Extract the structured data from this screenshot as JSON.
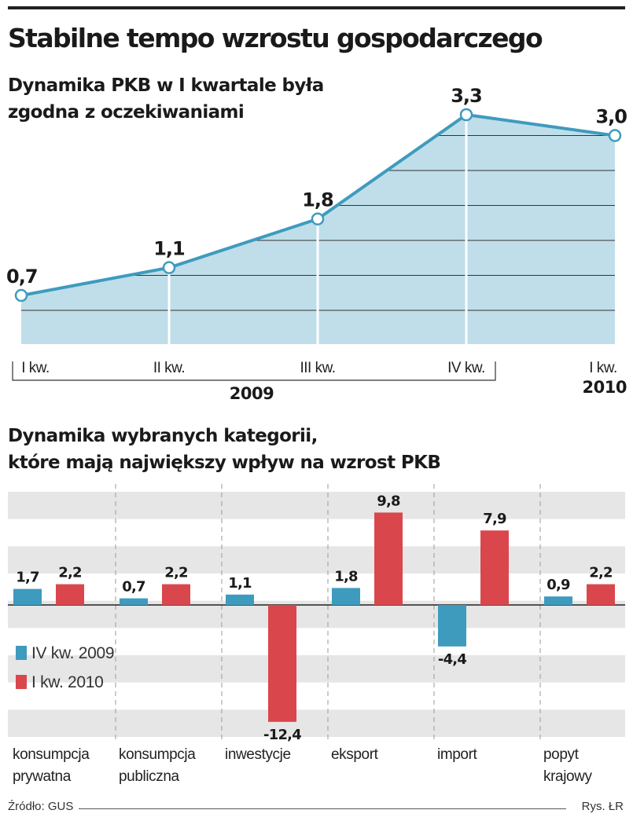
{
  "title": "Stabilne tempo wzrostu gospodarczego",
  "source": "Źródło: GUS",
  "credit": "Rys. ŁR",
  "chart_data": [
    {
      "type": "area",
      "title_lines": [
        "Dynamika PKB w I kwartale była",
        "zgodna z oczekiwaniami"
      ],
      "categories": [
        "I kw.",
        "II kw.",
        "III kw.",
        "IV kw.",
        "I kw."
      ],
      "values": [
        0.7,
        1.1,
        1.8,
        3.3,
        3.0
      ],
      "value_labels": [
        "0,7",
        "1,1",
        "1,8",
        "3,3",
        "3,0"
      ],
      "year_labels": [
        {
          "text": "2009",
          "span": [
            0,
            3
          ]
        },
        {
          "text": "2010",
          "span": [
            4,
            4
          ]
        }
      ],
      "ylim": [
        0,
        3.3
      ],
      "grid": true,
      "colors": {
        "area": "#bfdeea",
        "line": "#3e9bbd",
        "grid": "#333333"
      }
    },
    {
      "type": "bar",
      "title_lines": [
        "Dynamika wybranych kategorii,",
        "które mają największy wpływ na wzrost PKB"
      ],
      "categories": [
        [
          "konsumpcja",
          "prywatna"
        ],
        [
          "konsumpcja",
          "publiczna"
        ],
        [
          "inwestycje"
        ],
        [
          "eksport"
        ],
        [
          "import"
        ],
        [
          "popyt",
          "krajowy"
        ]
      ],
      "series": [
        {
          "name": "IV kw. 2009",
          "values": [
            1.7,
            0.7,
            1.1,
            1.8,
            -4.4,
            0.9
          ],
          "labels": [
            "1,7",
            "0,7",
            "1,1",
            "1,8",
            "-4,4",
            "0,9"
          ],
          "color": "#3e9bbd"
        },
        {
          "name": "I kw. 2010",
          "values": [
            2.2,
            2.2,
            -12.4,
            9.8,
            7.9,
            2.2
          ],
          "labels": [
            "2,2",
            "2,2",
            "-12,4",
            "9,8",
            "7,9",
            "2,2"
          ],
          "color": "#d9474d"
        }
      ],
      "ylim": [
        -14,
        12
      ],
      "legend": "left",
      "colors": {
        "band": "#e6e6e6"
      }
    }
  ]
}
